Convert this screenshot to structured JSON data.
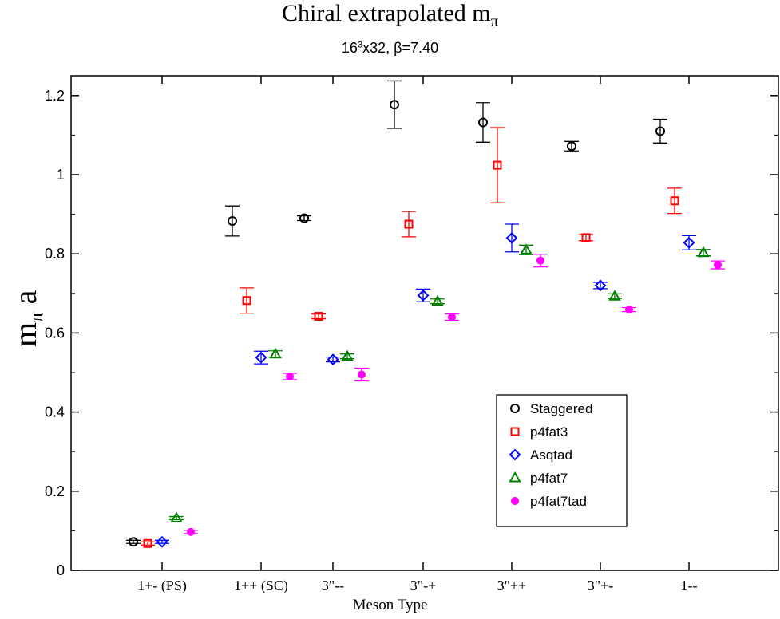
{
  "title": {
    "prefix": "Chiral extrapolated m",
    "subscript": "π"
  },
  "subtitle": {
    "base": "16",
    "sup": "3",
    "rest": "x32, β=7.40"
  },
  "xlabel": "Meson Type",
  "ylabel": {
    "base": "m",
    "subscript": "π",
    "rest": " a"
  },
  "chart_data": {
    "type": "scatter",
    "categories": [
      "1+- (PS)",
      "1++ (SC)",
      "3\"--",
      "3\"-+",
      "3\"++",
      "3\"+-",
      "1--"
    ],
    "ylim": [
      0,
      1.25
    ],
    "yticks": [
      "0",
      "0.2",
      "0.4",
      "0.6",
      "0.8",
      "1",
      "1.2"
    ],
    "legend_position": "bottom-right",
    "grid": false,
    "series": [
      {
        "name": "Staggered",
        "color": "#000000",
        "marker": "circle",
        "values": [
          0.072,
          0.883,
          0.89,
          1.177,
          1.132,
          1.072,
          1.11
        ],
        "errors": [
          0.004,
          0.038,
          0.006,
          0.06,
          0.05,
          0.012,
          0.03
        ]
      },
      {
        "name": "p4fat3",
        "color": "#ff0000",
        "marker": "square",
        "values": [
          0.068,
          0.682,
          0.642,
          0.875,
          1.024,
          0.841,
          0.934
        ],
        "errors": [
          0.004,
          0.032,
          0.006,
          0.032,
          0.095,
          0.008,
          0.032
        ]
      },
      {
        "name": "Asqtad",
        "color": "#0000ff",
        "marker": "diamond",
        "values": [
          0.072,
          0.538,
          0.533,
          0.695,
          0.84,
          0.72,
          0.828
        ],
        "errors": [
          0.004,
          0.016,
          0.006,
          0.016,
          0.035,
          0.008,
          0.018
        ]
      },
      {
        "name": "p4fat7",
        "color": "#008000",
        "marker": "triangle",
        "values": [
          0.132,
          0.547,
          0.541,
          0.68,
          0.81,
          0.693,
          0.803
        ],
        "errors": [
          0.004,
          0.008,
          0.006,
          0.006,
          0.012,
          0.006,
          0.008
        ]
      },
      {
        "name": "p4fat7tad",
        "color": "#ff00ff",
        "marker": "filled-circle",
        "values": [
          0.097,
          0.49,
          0.495,
          0.64,
          0.783,
          0.659,
          0.772
        ],
        "errors": [
          0.004,
          0.008,
          0.016,
          0.008,
          0.016,
          0.005,
          0.01
        ]
      }
    ]
  }
}
